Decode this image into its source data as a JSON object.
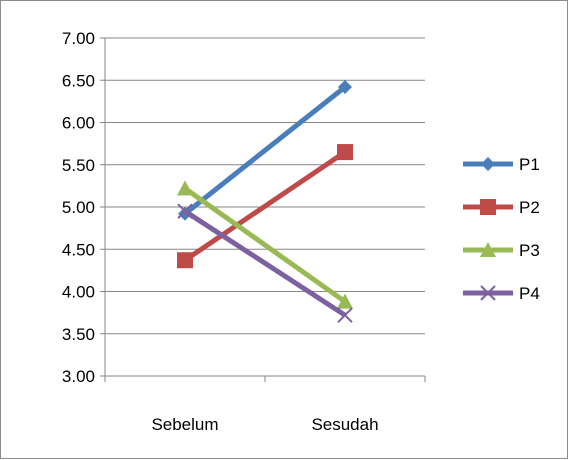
{
  "chart_data": {
    "type": "line",
    "categories": [
      "Sebelum",
      "Sesudah"
    ],
    "ylim": [
      3.0,
      7.0
    ],
    "yticks": [
      "3.00",
      "3.50",
      "4.00",
      "4.50",
      "5.00",
      "5.50",
      "6.00",
      "6.50",
      "7.00"
    ],
    "grid": true,
    "legend_position": "right",
    "series": [
      {
        "name": "P1",
        "values": [
          4.92,
          6.42
        ],
        "color": "#4a7ebb",
        "marker": "diamond"
      },
      {
        "name": "P2",
        "values": [
          4.37,
          5.65
        ],
        "color": "#be4b48",
        "marker": "square"
      },
      {
        "name": "P3",
        "values": [
          5.22,
          3.88
        ],
        "color": "#98b954",
        "marker": "triangle"
      },
      {
        "name": "P4",
        "values": [
          4.95,
          3.72
        ],
        "color": "#7d60a0",
        "marker": "x"
      }
    ]
  }
}
